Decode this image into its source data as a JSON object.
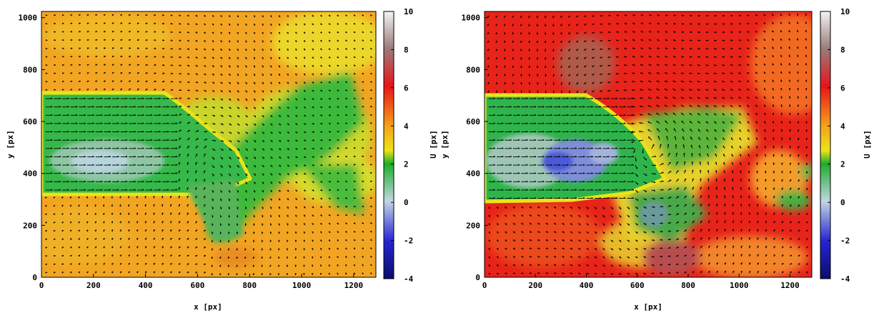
{
  "chart_data": [
    {
      "type": "heatmap",
      "xlabel": "x [px]",
      "ylabel": "y [px]",
      "colorbar_label": "U [px]",
      "xlim": [
        0,
        1280
      ],
      "ylim": [
        0,
        1024
      ],
      "x_ticks": [
        0,
        200,
        400,
        600,
        800,
        1000,
        1200
      ],
      "y_ticks": [
        0,
        200,
        400,
        600,
        800,
        1000
      ],
      "colorbar_range": [
        -4,
        10
      ],
      "colorbar_ticks": [
        10,
        8,
        6,
        4,
        2,
        0,
        -2,
        -4
      ],
      "field": "U (horizontal displacement) with velocity vectors",
      "background_level": 4,
      "jet_region": {
        "x": [
          0,
          500
        ],
        "y": [
          310,
          700
        ],
        "level": 1
      },
      "overlay": "vector arrows"
    },
    {
      "type": "heatmap",
      "xlabel": "x [px]",
      "ylabel": "y [px]",
      "colorbar_label": "U [px]",
      "xlim": [
        0,
        1280
      ],
      "ylim": [
        0,
        1024
      ],
      "x_ticks": [
        0,
        200,
        400,
        600,
        800,
        1000,
        1200
      ],
      "y_ticks": [
        0,
        200,
        400,
        600,
        800,
        1000
      ],
      "colorbar_range": [
        -4,
        10
      ],
      "colorbar_ticks": [
        10,
        8,
        6,
        4,
        2,
        0,
        -2,
        -4
      ],
      "field": "U (horizontal displacement) with velocity vectors",
      "background_level": 6,
      "jet_region": {
        "x": [
          0,
          560
        ],
        "y": [
          300,
          700
        ],
        "level": 0
      },
      "overlay": "vector arrows"
    }
  ],
  "colors": {
    "scale_top": "#f4f4f4",
    "scale_gray": "#9a7a7a",
    "scale_red": "#e8141a",
    "scale_orange": "#f4a418",
    "scale_yellow": "#ece417",
    "scale_green": "#1cad2a",
    "scale_light": "#c2d6e4",
    "scale_blue": "#2424d4",
    "scale_bottom": "#0c0c6c"
  }
}
